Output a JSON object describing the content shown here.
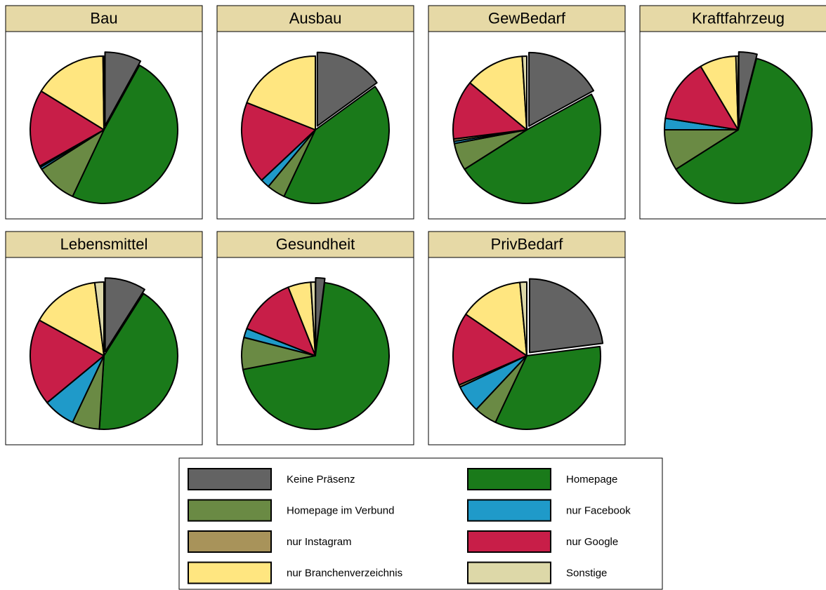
{
  "chart_data": {
    "type": "pie",
    "categories": [
      "Keine Präsenz",
      "Homepage",
      "Homepage im Verbund",
      "nur Facebook",
      "nur Instagram",
      "nur Google",
      "nur Branchenverzeichnis",
      "Sonstige"
    ],
    "colors": [
      "#636363",
      "#1a7a1a",
      "#6a8a44",
      "#1f9ac9",
      "#a8935a",
      "#c81e48",
      "#ffe680",
      "#ddd8a8"
    ],
    "series": [
      {
        "name": "Bau",
        "values": [
          8,
          49,
          9,
          0.5,
          0.3,
          17,
          16,
          0.2
        ]
      },
      {
        "name": "Ausbau",
        "values": [
          15,
          42,
          4,
          2,
          0,
          18,
          19,
          0
        ]
      },
      {
        "name": "GewBedarf",
        "values": [
          17,
          49,
          6,
          0.5,
          0.5,
          13,
          13,
          1
        ]
      },
      {
        "name": "Kraftfahrzeug",
        "values": [
          4,
          62,
          9,
          2.5,
          0,
          14,
          8,
          0.5
        ]
      },
      {
        "name": "Lebensmittel",
        "values": [
          9,
          42,
          6,
          7,
          0,
          19,
          15,
          2
        ]
      },
      {
        "name": "Gesundheit",
        "values": [
          2,
          70,
          7,
          2,
          0,
          13,
          5,
          1
        ]
      },
      {
        "name": "PrivBedarf",
        "values": [
          23,
          34,
          5,
          6,
          0.5,
          16,
          14,
          1.5
        ]
      }
    ]
  }
}
